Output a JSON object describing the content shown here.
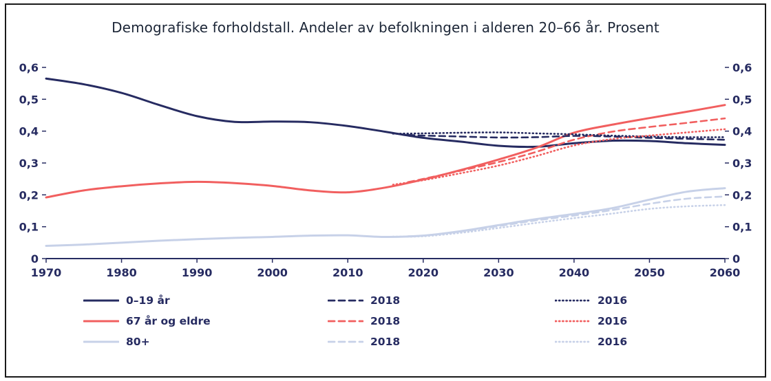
{
  "chart_data": {
    "type": "line",
    "title": "Demografiske forholdstall. Andeler av befolkningen i alderen 20–66 år. Prosent",
    "xlabel": "",
    "ylabel": "",
    "xlim": [
      1970,
      2060
    ],
    "ylim": [
      0,
      0.6
    ],
    "grid": false,
    "legend_position": "bottom",
    "x_ticks": [
      1970,
      1980,
      1990,
      2000,
      2010,
      2020,
      2030,
      2040,
      2050,
      2060
    ],
    "y_ticks": [
      {
        "value": 0.0,
        "label": "0"
      },
      {
        "value": 0.1,
        "label": "0,1"
      },
      {
        "value": 0.2,
        "label": "0,2"
      },
      {
        "value": 0.3,
        "label": "0,3"
      },
      {
        "value": 0.4,
        "label": "0,4"
      },
      {
        "value": 0.5,
        "label": "0,5"
      },
      {
        "value": 0.6,
        "label": "0,6"
      }
    ],
    "colors": {
      "navy": "#262b61",
      "red": "#f15f5f",
      "lightblue": "#c7d1e8",
      "axis": "#262b61"
    },
    "series": [
      {
        "id": "age-80-main",
        "name": "80+",
        "color": "#c7d1e8",
        "width": 3,
        "dash": null,
        "x": [
          1970,
          1975,
          1980,
          1985,
          1990,
          1995,
          2000,
          2005,
          2010,
          2015,
          2020,
          2025,
          2030,
          2035,
          2040,
          2045,
          2050,
          2055,
          2060
        ],
        "y": [
          0.04,
          0.044,
          0.05,
          0.056,
          0.061,
          0.065,
          0.068,
          0.072,
          0.073,
          0.068,
          0.072,
          0.086,
          0.105,
          0.124,
          0.14,
          0.158,
          0.185,
          0.21,
          0.221
        ]
      },
      {
        "id": "age-0-19-main",
        "name": "0–19 år",
        "color": "#262b61",
        "width": 3,
        "dash": null,
        "x": [
          1970,
          1975,
          1980,
          1985,
          1990,
          1995,
          2000,
          2005,
          2010,
          2015,
          2020,
          2025,
          2030,
          2035,
          2040,
          2045,
          2050,
          2055,
          2060
        ],
        "y": [
          0.565,
          0.547,
          0.52,
          0.482,
          0.447,
          0.429,
          0.43,
          0.428,
          0.416,
          0.398,
          0.379,
          0.367,
          0.354,
          0.351,
          0.362,
          0.37,
          0.369,
          0.362,
          0.357
        ]
      },
      {
        "id": "age-67-main",
        "name": "67 år og eldre",
        "color": "#f15f5f",
        "width": 3,
        "dash": null,
        "x": [
          1970,
          1975,
          1980,
          1985,
          1990,
          1995,
          2000,
          2005,
          2010,
          2015,
          2020,
          2025,
          2030,
          2035,
          2040,
          2045,
          2050,
          2055,
          2060
        ],
        "y": [
          0.192,
          0.214,
          0.227,
          0.236,
          0.241,
          0.237,
          0.228,
          0.214,
          0.208,
          0.223,
          0.248,
          0.278,
          0.311,
          0.348,
          0.395,
          0.42,
          0.441,
          0.461,
          0.482
        ]
      },
      {
        "id": "age-80-2018",
        "name": "2018",
        "color": "#c7d1e8",
        "width": 2.6,
        "dash": "9 6",
        "x": [
          2018,
          2020,
          2025,
          2030,
          2035,
          2040,
          2045,
          2050,
          2055,
          2060
        ],
        "y": [
          0.07,
          0.072,
          0.085,
          0.102,
          0.12,
          0.135,
          0.152,
          0.172,
          0.188,
          0.195
        ]
      },
      {
        "id": "age-0-19-2018",
        "name": "2018",
        "color": "#262b61",
        "width": 2.6,
        "dash": "9 6",
        "x": [
          2018,
          2020,
          2025,
          2030,
          2035,
          2040,
          2045,
          2050,
          2055,
          2060
        ],
        "y": [
          0.388,
          0.386,
          0.383,
          0.38,
          0.381,
          0.385,
          0.383,
          0.379,
          0.376,
          0.373
        ]
      },
      {
        "id": "age-67-2018",
        "name": "2018",
        "color": "#f15f5f",
        "width": 2.6,
        "dash": "9 6",
        "x": [
          2018,
          2020,
          2025,
          2030,
          2035,
          2040,
          2045,
          2050,
          2055,
          2060
        ],
        "y": [
          0.24,
          0.25,
          0.276,
          0.303,
          0.335,
          0.373,
          0.398,
          0.413,
          0.426,
          0.44
        ]
      },
      {
        "id": "age-80-2016",
        "name": "2016",
        "color": "#c7d1e8",
        "width": 2.6,
        "dash": "1 4.2",
        "x": [
          2016,
          2020,
          2025,
          2030,
          2035,
          2040,
          2045,
          2050,
          2055,
          2060
        ],
        "y": [
          0.069,
          0.07,
          0.081,
          0.096,
          0.112,
          0.127,
          0.141,
          0.156,
          0.164,
          0.168
        ]
      },
      {
        "id": "age-0-19-2016",
        "name": "2016",
        "color": "#262b61",
        "width": 2.6,
        "dash": "1 4.2",
        "x": [
          2016,
          2020,
          2025,
          2030,
          2035,
          2040,
          2045,
          2050,
          2055,
          2060
        ],
        "y": [
          0.392,
          0.393,
          0.395,
          0.396,
          0.393,
          0.39,
          0.386,
          0.383,
          0.381,
          0.381
        ]
      },
      {
        "id": "age-67-2016",
        "name": "2016",
        "color": "#f15f5f",
        "width": 2.6,
        "dash": "1 4.2",
        "x": [
          2016,
          2020,
          2025,
          2030,
          2035,
          2040,
          2045,
          2050,
          2055,
          2060
        ],
        "y": [
          0.232,
          0.246,
          0.268,
          0.292,
          0.322,
          0.355,
          0.375,
          0.386,
          0.396,
          0.406
        ]
      }
    ],
    "legend": {
      "columns": [
        {
          "style": "solid",
          "items": [
            {
              "label": "0–19 år",
              "color": "#262b61"
            },
            {
              "label": "67 år og eldre",
              "color": "#f15f5f"
            },
            {
              "label": "80+",
              "color": "#c7d1e8"
            }
          ]
        },
        {
          "style": "dashed",
          "items": [
            {
              "label": "2018",
              "color": "#262b61"
            },
            {
              "label": "2018",
              "color": "#f15f5f"
            },
            {
              "label": "2018",
              "color": "#c7d1e8"
            }
          ]
        },
        {
          "style": "dotted",
          "items": [
            {
              "label": "2016",
              "color": "#262b61"
            },
            {
              "label": "2016",
              "color": "#f15f5f"
            },
            {
              "label": "2016",
              "color": "#c7d1e8"
            }
          ]
        }
      ]
    }
  }
}
